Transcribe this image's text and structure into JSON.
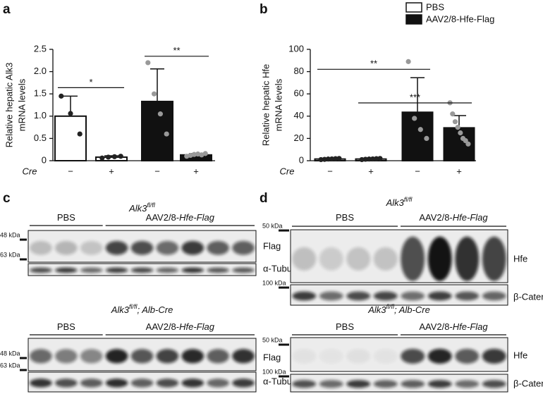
{
  "panel_labels": [
    "a",
    "b",
    "c",
    "d"
  ],
  "chart_data": [
    {
      "type": "bar",
      "ylabel": [
        "Relative hepatic Alk3",
        "mRNA levels"
      ],
      "x_row_label": "Cre",
      "categories": [
        "−",
        "+",
        "−",
        "+"
      ],
      "ylim": [
        0,
        2.5
      ],
      "yticks": [
        0,
        0.5,
        {
          "value": 1,
          "label": "1.0"
        },
        1.5,
        {
          "value": 2,
          "label": "2.0"
        },
        2.5
      ],
      "series": [
        {
          "color": "#ffffff",
          "dot_color": "#222222",
          "values": [
            1.0,
            0.08,
            null,
            null
          ],
          "errors": [
            0.45,
            0.03,
            null,
            null
          ],
          "points": [
            [
              1.45,
              1.06,
              0.6
            ],
            [
              0.06,
              0.08,
              0.09,
              0.1
            ],
            null,
            null
          ]
        },
        {
          "color": "#111111",
          "dot_color": "#999999",
          "values": [
            null,
            null,
            1.33,
            0.13
          ],
          "errors": [
            null,
            null,
            0.73,
            0.03
          ],
          "points": [
            null,
            null,
            [
              2.2,
              1.5,
              1.05,
              0.6
            ],
            [
              0.1,
              0.12,
              0.14,
              0.15,
              0.13,
              0.16
            ]
          ]
        }
      ],
      "annotations": [
        {
          "text": "*",
          "between": [
            0,
            1
          ]
        },
        {
          "text": "**",
          "between": [
            2,
            3
          ]
        }
      ]
    },
    {
      "type": "bar",
      "ylabel": [
        "Relative hepatic Hfe",
        "mRNA levels"
      ],
      "x_row_label": "Cre",
      "categories": [
        "−",
        "+",
        "−",
        "+"
      ],
      "ylim": [
        0,
        100
      ],
      "yticks": [
        0,
        20,
        40,
        60,
        80,
        100
      ],
      "series": [
        {
          "name": "PBS",
          "color": "#ffffff",
          "dot_color": "#222222",
          "values": [
            1.5,
            1.5,
            null,
            null
          ],
          "errors": [
            0.5,
            0.5,
            null,
            null
          ],
          "points": [
            [
              1,
              1.2,
              1.5,
              1.6,
              1.8,
              2
            ],
            [
              1,
              1.3,
              1.5,
              1.6,
              1.8,
              2
            ],
            null,
            null
          ]
        },
        {
          "name": "AAV2/8-Hfe-Flag",
          "color": "#111111",
          "dot_color": "#999999",
          "values": [
            null,
            null,
            43.5,
            29.5
          ],
          "errors": [
            null,
            null,
            31,
            11
          ],
          "points": [
            null,
            null,
            [
              89,
              38,
              28,
              20
            ],
            [
              52,
              42,
              35,
              30,
              25,
              20,
              18,
              15
            ]
          ]
        }
      ],
      "annotations": [
        {
          "text": "**",
          "between": [
            0,
            2
          ]
        },
        {
          "text": "***",
          "between": [
            1,
            3
          ]
        }
      ]
    }
  ],
  "blots": [
    {
      "title": {
        "gene": "Alk3",
        "sup": "fl/fl"
      },
      "groups": [
        {
          "plain": "PBS"
        },
        {
          "plain": "AAV2/8-",
          "italic": "Hfe-Flag"
        }
      ],
      "markers": [
        "48 kDa",
        "63 kDa"
      ],
      "bands": [
        "Flag",
        "α-Tubulin"
      ]
    },
    {
      "title": {
        "gene": "Alk3",
        "sup": "fl/fl",
        "suffix": "; Alb-Cre"
      },
      "groups": [
        {
          "plain": "PBS"
        },
        {
          "plain": "AAV2/8-",
          "italic": "Hfe-Flag"
        }
      ],
      "markers": [
        "48 kDa",
        "63 kDa"
      ],
      "bands": [
        "Flag",
        "α-Tubulin"
      ]
    },
    {
      "title": {
        "gene": "Alk3",
        "sup": "fl/fl"
      },
      "groups": [
        {
          "plain": "PBS"
        },
        {
          "plain": "AAV2/8-",
          "italic": "Hfe-Flag"
        }
      ],
      "markers": [
        "50 kDa",
        "100 kDa"
      ],
      "bands": [
        "Hfe",
        "β-Catenin"
      ]
    },
    {
      "title": {
        "gene": "Alk3",
        "sup": "fl/fl",
        "suffix": "; Alb-Cre"
      },
      "groups": [
        {
          "plain": "PBS"
        },
        {
          "plain": "AAV2/8-",
          "italic": "Hfe-Flag"
        }
      ],
      "markers": [
        "50 kDa",
        "100 kDa"
      ],
      "bands": [
        "Hfe",
        "β-Catenin"
      ]
    }
  ]
}
